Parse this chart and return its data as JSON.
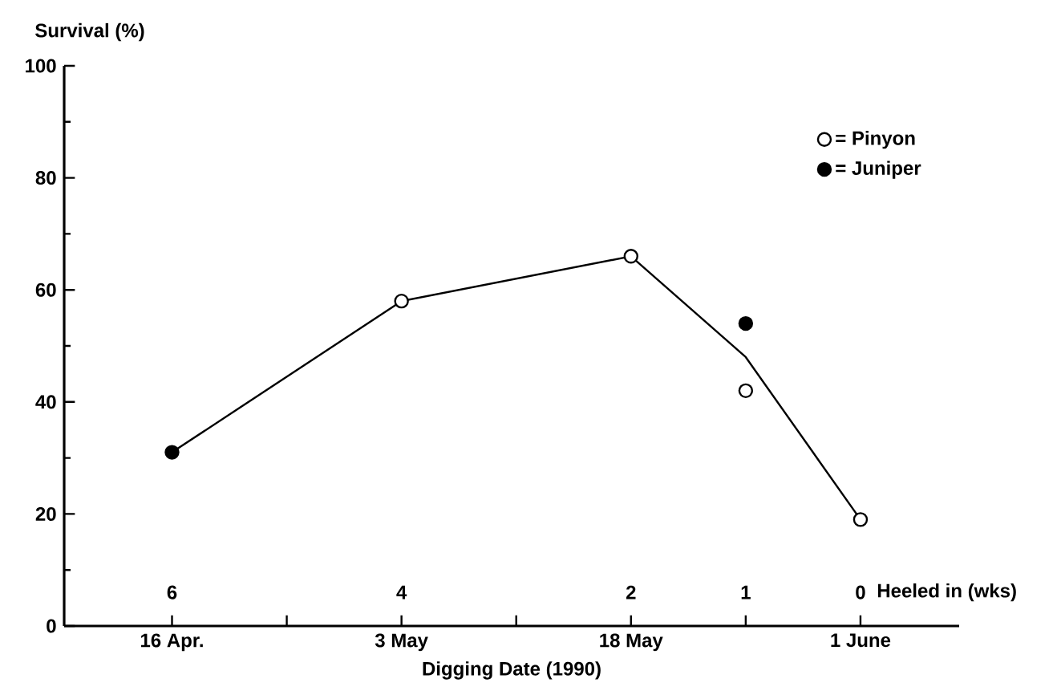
{
  "chart_data": {
    "type": "scatter",
    "xlabel": "Digging Date (1990)",
    "ylabel": "Survival (%)",
    "categories": [
      "16 Apr.",
      null,
      "3 May",
      null,
      "18 May",
      null,
      "1 June"
    ],
    "ylim": [
      0,
      100
    ],
    "yticks": [
      0,
      20,
      40,
      60,
      80,
      100
    ],
    "series": [
      {
        "type": "line",
        "color": "#000000",
        "marker": "none",
        "values": [
          31,
          null,
          58,
          null,
          66,
          48,
          19
        ]
      },
      {
        "name": "= Pinyon",
        "color": "#ffffff",
        "marker": "circle",
        "values": [
          null,
          null,
          58,
          null,
          66,
          42,
          19
        ]
      },
      {
        "name": "= Juniper",
        "color": "#000000",
        "marker": "circle",
        "values": [
          31,
          null,
          null,
          null,
          null,
          54,
          null
        ]
      }
    ],
    "annotations": [
      "6",
      "4",
      "2",
      "1",
      "0",
      "Heeled in (wks)"
    ],
    "legend": "top right"
  }
}
